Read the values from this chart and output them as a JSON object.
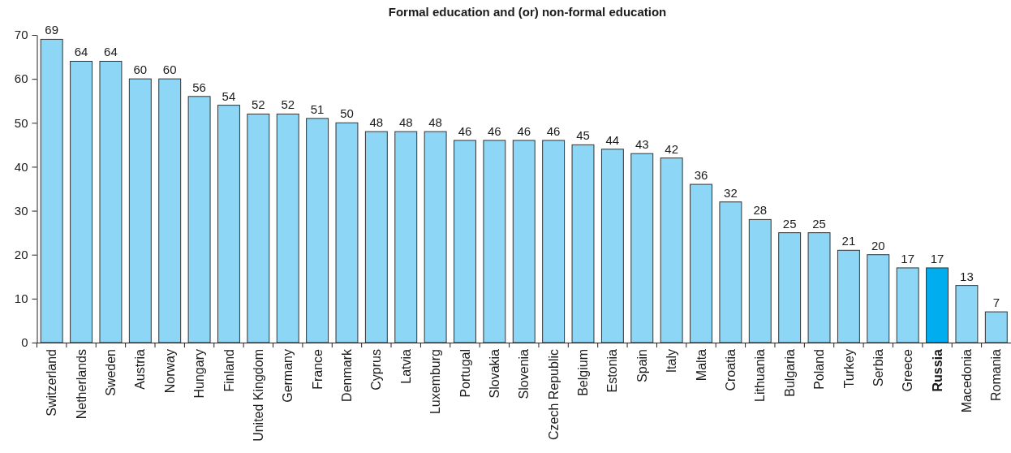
{
  "chart_data": {
    "type": "bar",
    "title": "Formal education and (or) non-formal education",
    "categories": [
      "Switzerland",
      "Netherlands",
      "Sweden",
      "Austria",
      "Norway",
      "Hungary",
      "Finland",
      "United Kingdom",
      "Germany",
      "France",
      "Denmark",
      "Cyprus",
      "Latvia",
      "Luxemburg",
      "Portugal",
      "Slovakia",
      "Slovenia",
      "Czech Republic",
      "Belgium",
      "Estonia",
      "Spain",
      "Italy",
      "Malta",
      "Croatia",
      "Lithuania",
      "Bulgaria",
      "Poland",
      "Turkey",
      "Serbia",
      "Greece",
      "Russia",
      "Macedonia",
      "Romania"
    ],
    "values": [
      69,
      64,
      64,
      60,
      60,
      56,
      54,
      52,
      52,
      51,
      50,
      48,
      48,
      48,
      46,
      46,
      46,
      46,
      45,
      44,
      43,
      42,
      36,
      32,
      28,
      25,
      25,
      21,
      20,
      17,
      17,
      13,
      7
    ],
    "colors": [
      "#8dd6f5",
      "#8dd6f5",
      "#8dd6f5",
      "#8dd6f5",
      "#8dd6f5",
      "#8dd6f5",
      "#8dd6f5",
      "#8dd6f5",
      "#8dd6f5",
      "#8dd6f5",
      "#8dd6f5",
      "#8dd6f5",
      "#8dd6f5",
      "#8dd6f5",
      "#8dd6f5",
      "#8dd6f5",
      "#8dd6f5",
      "#8dd6f5",
      "#8dd6f5",
      "#8dd6f5",
      "#8dd6f5",
      "#8dd6f5",
      "#8dd6f5",
      "#8dd6f5",
      "#8dd6f5",
      "#8dd6f5",
      "#8dd6f5",
      "#8dd6f5",
      "#8dd6f5",
      "#8dd6f5",
      "#00aeef",
      "#8dd6f5",
      "#8dd6f5"
    ],
    "ylim": [
      0,
      70
    ],
    "yticks": [
      0,
      10,
      20,
      30,
      40,
      50,
      60,
      70
    ],
    "data_labels": true
  }
}
